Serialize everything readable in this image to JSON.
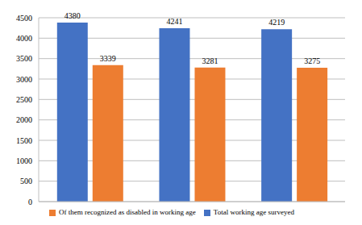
{
  "chart_data": {
    "type": "bar",
    "categories": [
      null,
      null,
      null
    ],
    "series": [
      {
        "name": "Total working age surveyed",
        "color": "#4472c4",
        "values": [
          4380,
          4241,
          4219
        ]
      },
      {
        "name": "Of them recognized as disabled in working age",
        "color": "#ed7d31",
        "values": [
          3339,
          3281,
          3275
        ]
      }
    ],
    "ylim": [
      0,
      4500
    ],
    "yticks": [
      0,
      500,
      1000,
      1500,
      2000,
      2500,
      3000,
      3500,
      4000,
      4500
    ],
    "grid": true,
    "legend": "bottom",
    "data_labels": true
  }
}
